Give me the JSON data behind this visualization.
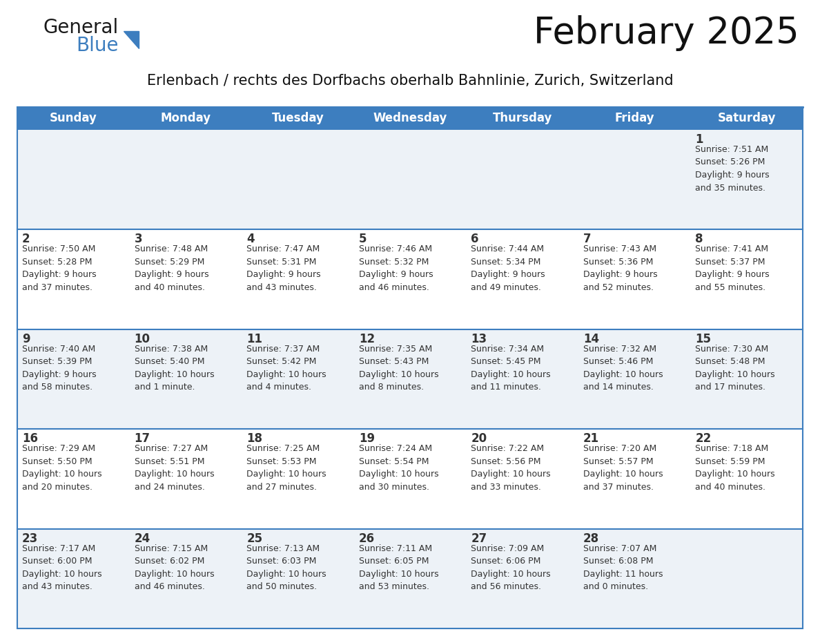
{
  "title": "February 2025",
  "subtitle": "Erlenbach / rechts des Dorfbachs oberhalb Bahnlinie, Zurich, Switzerland",
  "header_color": "#3d7ebf",
  "header_text_color": "#ffffff",
  "cell_bg_even": "#edf2f7",
  "cell_bg_odd": "#ffffff",
  "row_sep_color": "#3d7ebf",
  "text_color": "#333333",
  "day_headers": [
    "Sunday",
    "Monday",
    "Tuesday",
    "Wednesday",
    "Thursday",
    "Friday",
    "Saturday"
  ],
  "weeks": [
    [
      {
        "day": null,
        "info": null
      },
      {
        "day": null,
        "info": null
      },
      {
        "day": null,
        "info": null
      },
      {
        "day": null,
        "info": null
      },
      {
        "day": null,
        "info": null
      },
      {
        "day": null,
        "info": null
      },
      {
        "day": 1,
        "info": "Sunrise: 7:51 AM\nSunset: 5:26 PM\nDaylight: 9 hours\nand 35 minutes."
      }
    ],
    [
      {
        "day": 2,
        "info": "Sunrise: 7:50 AM\nSunset: 5:28 PM\nDaylight: 9 hours\nand 37 minutes."
      },
      {
        "day": 3,
        "info": "Sunrise: 7:48 AM\nSunset: 5:29 PM\nDaylight: 9 hours\nand 40 minutes."
      },
      {
        "day": 4,
        "info": "Sunrise: 7:47 AM\nSunset: 5:31 PM\nDaylight: 9 hours\nand 43 minutes."
      },
      {
        "day": 5,
        "info": "Sunrise: 7:46 AM\nSunset: 5:32 PM\nDaylight: 9 hours\nand 46 minutes."
      },
      {
        "day": 6,
        "info": "Sunrise: 7:44 AM\nSunset: 5:34 PM\nDaylight: 9 hours\nand 49 minutes."
      },
      {
        "day": 7,
        "info": "Sunrise: 7:43 AM\nSunset: 5:36 PM\nDaylight: 9 hours\nand 52 minutes."
      },
      {
        "day": 8,
        "info": "Sunrise: 7:41 AM\nSunset: 5:37 PM\nDaylight: 9 hours\nand 55 minutes."
      }
    ],
    [
      {
        "day": 9,
        "info": "Sunrise: 7:40 AM\nSunset: 5:39 PM\nDaylight: 9 hours\nand 58 minutes."
      },
      {
        "day": 10,
        "info": "Sunrise: 7:38 AM\nSunset: 5:40 PM\nDaylight: 10 hours\nand 1 minute."
      },
      {
        "day": 11,
        "info": "Sunrise: 7:37 AM\nSunset: 5:42 PM\nDaylight: 10 hours\nand 4 minutes."
      },
      {
        "day": 12,
        "info": "Sunrise: 7:35 AM\nSunset: 5:43 PM\nDaylight: 10 hours\nand 8 minutes."
      },
      {
        "day": 13,
        "info": "Sunrise: 7:34 AM\nSunset: 5:45 PM\nDaylight: 10 hours\nand 11 minutes."
      },
      {
        "day": 14,
        "info": "Sunrise: 7:32 AM\nSunset: 5:46 PM\nDaylight: 10 hours\nand 14 minutes."
      },
      {
        "day": 15,
        "info": "Sunrise: 7:30 AM\nSunset: 5:48 PM\nDaylight: 10 hours\nand 17 minutes."
      }
    ],
    [
      {
        "day": 16,
        "info": "Sunrise: 7:29 AM\nSunset: 5:50 PM\nDaylight: 10 hours\nand 20 minutes."
      },
      {
        "day": 17,
        "info": "Sunrise: 7:27 AM\nSunset: 5:51 PM\nDaylight: 10 hours\nand 24 minutes."
      },
      {
        "day": 18,
        "info": "Sunrise: 7:25 AM\nSunset: 5:53 PM\nDaylight: 10 hours\nand 27 minutes."
      },
      {
        "day": 19,
        "info": "Sunrise: 7:24 AM\nSunset: 5:54 PM\nDaylight: 10 hours\nand 30 minutes."
      },
      {
        "day": 20,
        "info": "Sunrise: 7:22 AM\nSunset: 5:56 PM\nDaylight: 10 hours\nand 33 minutes."
      },
      {
        "day": 21,
        "info": "Sunrise: 7:20 AM\nSunset: 5:57 PM\nDaylight: 10 hours\nand 37 minutes."
      },
      {
        "day": 22,
        "info": "Sunrise: 7:18 AM\nSunset: 5:59 PM\nDaylight: 10 hours\nand 40 minutes."
      }
    ],
    [
      {
        "day": 23,
        "info": "Sunrise: 7:17 AM\nSunset: 6:00 PM\nDaylight: 10 hours\nand 43 minutes."
      },
      {
        "day": 24,
        "info": "Sunrise: 7:15 AM\nSunset: 6:02 PM\nDaylight: 10 hours\nand 46 minutes."
      },
      {
        "day": 25,
        "info": "Sunrise: 7:13 AM\nSunset: 6:03 PM\nDaylight: 10 hours\nand 50 minutes."
      },
      {
        "day": 26,
        "info": "Sunrise: 7:11 AM\nSunset: 6:05 PM\nDaylight: 10 hours\nand 53 minutes."
      },
      {
        "day": 27,
        "info": "Sunrise: 7:09 AM\nSunset: 6:06 PM\nDaylight: 10 hours\nand 56 minutes."
      },
      {
        "day": 28,
        "info": "Sunrise: 7:07 AM\nSunset: 6:08 PM\nDaylight: 11 hours\nand 0 minutes."
      },
      {
        "day": null,
        "info": null
      }
    ]
  ],
  "logo_text_general": "General",
  "logo_text_blue": "Blue",
  "logo_color_general": "#1a1a1a",
  "logo_color_blue": "#3d7ebf",
  "logo_triangle_color": "#3d7ebf",
  "title_fontsize": 38,
  "subtitle_fontsize": 15,
  "header_fontsize": 12,
  "day_number_fontsize": 12,
  "cell_text_fontsize": 9
}
